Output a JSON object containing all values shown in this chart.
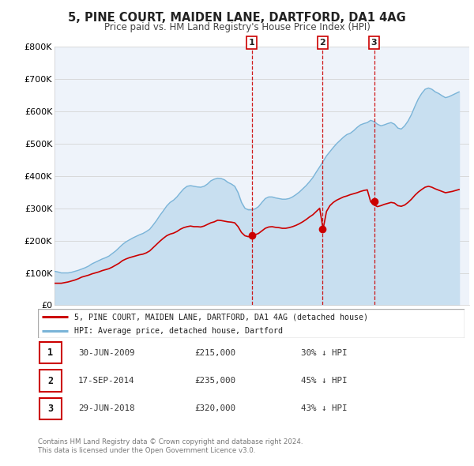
{
  "title": "5, PINE COURT, MAIDEN LANE, DARTFORD, DA1 4AG",
  "subtitle": "Price paid vs. HM Land Registry's House Price Index (HPI)",
  "ylim": [
    0,
    800000
  ],
  "yticks": [
    0,
    100000,
    200000,
    300000,
    400000,
    500000,
    600000,
    700000,
    800000
  ],
  "ytick_labels": [
    "£0",
    "£100K",
    "£200K",
    "£300K",
    "£400K",
    "£500K",
    "£600K",
    "£700K",
    "£800K"
  ],
  "xlim_start": 1995.0,
  "xlim_end": 2025.5,
  "hpi_color": "#7ab4d8",
  "hpi_fill_color": "#c8dff0",
  "price_color": "#cc0000",
  "vline_color": "#cc0000",
  "plot_bg": "#eef3fa",
  "grid_color": "#d4d4d4",
  "transactions": [
    {
      "date_decimal": 2009.5,
      "price": 215000,
      "label": "1",
      "date_str": "30-JUN-2009",
      "price_str": "£215,000",
      "pct_str": "30% ↓ HPI"
    },
    {
      "date_decimal": 2014.72,
      "price": 235000,
      "label": "2",
      "date_str": "17-SEP-2014",
      "price_str": "£235,000",
      "pct_str": "45% ↓ HPI"
    },
    {
      "date_decimal": 2018.5,
      "price": 320000,
      "label": "3",
      "date_str": "29-JUN-2018",
      "price_str": "£320,000",
      "pct_str": "43% ↓ HPI"
    }
  ],
  "legend_label_price": "5, PINE COURT, MAIDEN LANE, DARTFORD, DA1 4AG (detached house)",
  "legend_label_hpi": "HPI: Average price, detached house, Dartford",
  "footer1": "Contains HM Land Registry data © Crown copyright and database right 2024.",
  "footer2": "This data is licensed under the Open Government Licence v3.0.",
  "hpi_data_x": [
    1995.0,
    1995.25,
    1995.5,
    1995.75,
    1996.0,
    1996.25,
    1996.5,
    1996.75,
    1997.0,
    1997.25,
    1997.5,
    1997.75,
    1998.0,
    1998.25,
    1998.5,
    1998.75,
    1999.0,
    1999.25,
    1999.5,
    1999.75,
    2000.0,
    2000.25,
    2000.5,
    2000.75,
    2001.0,
    2001.25,
    2001.5,
    2001.75,
    2002.0,
    2002.25,
    2002.5,
    2002.75,
    2003.0,
    2003.25,
    2003.5,
    2003.75,
    2004.0,
    2004.25,
    2004.5,
    2004.75,
    2005.0,
    2005.25,
    2005.5,
    2005.75,
    2006.0,
    2006.25,
    2006.5,
    2006.75,
    2007.0,
    2007.25,
    2007.5,
    2007.75,
    2008.0,
    2008.25,
    2008.5,
    2008.75,
    2009.0,
    2009.25,
    2009.5,
    2009.75,
    2010.0,
    2010.25,
    2010.5,
    2010.75,
    2011.0,
    2011.25,
    2011.5,
    2011.75,
    2012.0,
    2012.25,
    2012.5,
    2012.75,
    2013.0,
    2013.25,
    2013.5,
    2013.75,
    2014.0,
    2014.25,
    2014.5,
    2014.75,
    2015.0,
    2015.25,
    2015.5,
    2015.75,
    2016.0,
    2016.25,
    2016.5,
    2016.75,
    2017.0,
    2017.25,
    2017.5,
    2017.75,
    2018.0,
    2018.25,
    2018.5,
    2018.75,
    2019.0,
    2019.25,
    2019.5,
    2019.75,
    2020.0,
    2020.25,
    2020.5,
    2020.75,
    2021.0,
    2021.25,
    2021.5,
    2021.75,
    2022.0,
    2022.25,
    2022.5,
    2022.75,
    2023.0,
    2023.25,
    2023.5,
    2023.75,
    2024.0,
    2024.25,
    2024.5,
    2024.75
  ],
  "hpi_data_y": [
    105000,
    103000,
    100000,
    100000,
    100000,
    102000,
    105000,
    108000,
    112000,
    116000,
    121000,
    128000,
    133000,
    138000,
    143000,
    147000,
    152000,
    160000,
    168000,
    178000,
    188000,
    196000,
    202000,
    208000,
    213000,
    218000,
    222000,
    228000,
    235000,
    248000,
    262000,
    278000,
    292000,
    307000,
    318000,
    325000,
    335000,
    348000,
    360000,
    368000,
    370000,
    368000,
    366000,
    365000,
    368000,
    375000,
    385000,
    390000,
    393000,
    392000,
    388000,
    380000,
    375000,
    368000,
    348000,
    318000,
    300000,
    295000,
    295000,
    298000,
    305000,
    318000,
    330000,
    335000,
    335000,
    332000,
    330000,
    328000,
    328000,
    330000,
    335000,
    342000,
    350000,
    360000,
    370000,
    382000,
    395000,
    412000,
    428000,
    445000,
    462000,
    475000,
    488000,
    500000,
    510000,
    520000,
    528000,
    532000,
    540000,
    550000,
    558000,
    562000,
    565000,
    572000,
    568000,
    560000,
    555000,
    558000,
    562000,
    565000,
    560000,
    548000,
    545000,
    555000,
    570000,
    590000,
    615000,
    638000,
    655000,
    668000,
    672000,
    668000,
    660000,
    655000,
    648000,
    642000,
    645000,
    650000,
    655000,
    660000
  ],
  "price_data_x": [
    1995.0,
    1995.25,
    1995.5,
    1995.75,
    1996.0,
    1996.25,
    1996.5,
    1996.75,
    1997.0,
    1997.25,
    1997.5,
    1997.75,
    1998.0,
    1998.25,
    1998.5,
    1998.75,
    1999.0,
    1999.25,
    1999.5,
    1999.75,
    2000.0,
    2000.25,
    2000.5,
    2000.75,
    2001.0,
    2001.25,
    2001.5,
    2001.75,
    2002.0,
    2002.25,
    2002.5,
    2002.75,
    2003.0,
    2003.25,
    2003.5,
    2003.75,
    2004.0,
    2004.25,
    2004.5,
    2004.75,
    2005.0,
    2005.25,
    2005.5,
    2005.75,
    2006.0,
    2006.25,
    2006.5,
    2006.75,
    2007.0,
    2007.25,
    2007.5,
    2007.75,
    2008.0,
    2008.25,
    2008.5,
    2008.75,
    2009.0,
    2009.25,
    2009.5,
    2009.75,
    2010.0,
    2010.25,
    2010.5,
    2010.75,
    2011.0,
    2011.25,
    2011.5,
    2011.75,
    2012.0,
    2012.25,
    2012.5,
    2012.75,
    2013.0,
    2013.25,
    2013.5,
    2013.75,
    2014.0,
    2014.25,
    2014.5,
    2014.75,
    2015.0,
    2015.25,
    2015.5,
    2015.75,
    2016.0,
    2016.25,
    2016.5,
    2016.75,
    2017.0,
    2017.25,
    2017.5,
    2017.75,
    2018.0,
    2018.25,
    2018.5,
    2018.75,
    2019.0,
    2019.25,
    2019.5,
    2019.75,
    2020.0,
    2020.25,
    2020.5,
    2020.75,
    2021.0,
    2021.25,
    2021.5,
    2021.75,
    2022.0,
    2022.25,
    2022.5,
    2022.75,
    2023.0,
    2023.25,
    2023.5,
    2023.75,
    2024.0,
    2024.25,
    2024.5,
    2024.75
  ],
  "price_data_y": [
    68000,
    68000,
    68000,
    70000,
    72000,
    75000,
    78000,
    82000,
    87000,
    90000,
    93000,
    97000,
    100000,
    103000,
    107000,
    110000,
    113000,
    118000,
    124000,
    130000,
    138000,
    143000,
    147000,
    150000,
    153000,
    156000,
    158000,
    162000,
    168000,
    178000,
    188000,
    198000,
    207000,
    215000,
    220000,
    223000,
    228000,
    235000,
    240000,
    243000,
    245000,
    243000,
    243000,
    242000,
    245000,
    250000,
    255000,
    258000,
    263000,
    262000,
    260000,
    258000,
    257000,
    255000,
    243000,
    225000,
    215000,
    212000,
    215000,
    218000,
    222000,
    230000,
    238000,
    242000,
    243000,
    241000,
    240000,
    238000,
    238000,
    240000,
    243000,
    247000,
    252000,
    258000,
    265000,
    273000,
    280000,
    290000,
    300000,
    235000,
    290000,
    308000,
    318000,
    325000,
    330000,
    335000,
    338000,
    342000,
    345000,
    348000,
    352000,
    355000,
    357000,
    320000,
    310000,
    305000,
    308000,
    312000,
    315000,
    318000,
    316000,
    308000,
    306000,
    310000,
    318000,
    328000,
    340000,
    350000,
    358000,
    365000,
    368000,
    365000,
    360000,
    356000,
    352000,
    348000,
    350000,
    352000,
    355000,
    358000
  ]
}
